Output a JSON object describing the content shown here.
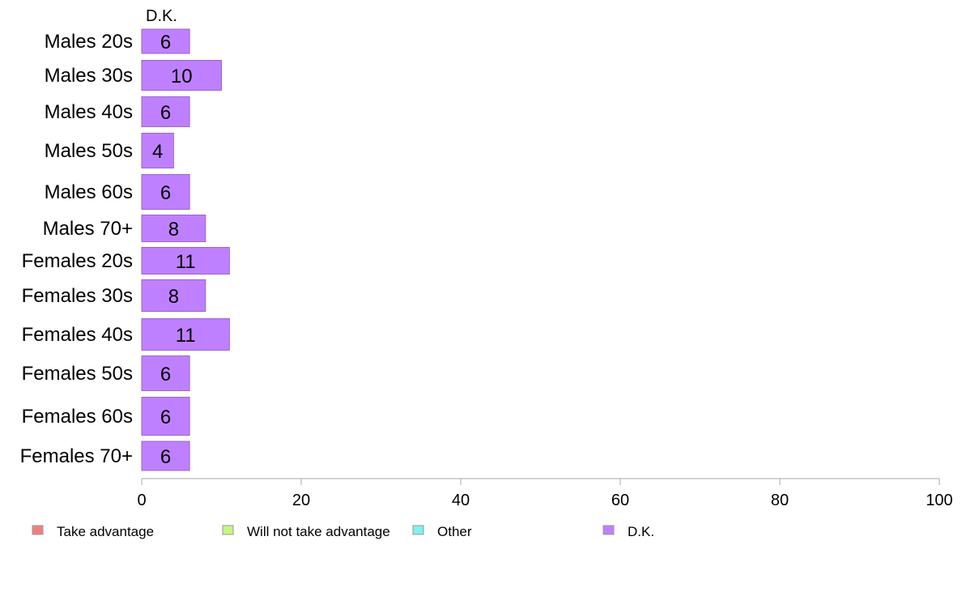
{
  "chart_data": {
    "type": "bar",
    "orientation": "horizontal",
    "stacked": true,
    "column_header": "D.K.",
    "categories": [
      "Males 20s",
      "Males 30s",
      "Males 40s",
      "Males 50s",
      "Males 60s",
      "Males 70+",
      "Females 20s",
      "Females 30s",
      "Females 40s",
      "Females 50s",
      "Females 60s",
      "Females 70+"
    ],
    "series": [
      {
        "name": "Take advantage",
        "color": "#f08080",
        "values": [
          0,
          0,
          0,
          0,
          0,
          0,
          0,
          0,
          0,
          0,
          0,
          0
        ]
      },
      {
        "name": "Will not take advantage",
        "color": "#c8f57f",
        "values": [
          0,
          0,
          0,
          0,
          0,
          0,
          0,
          0,
          0,
          0,
          0,
          0
        ]
      },
      {
        "name": "Other",
        "color": "#80f0f0",
        "values": [
          0,
          0,
          0,
          0,
          0,
          0,
          0,
          0,
          0,
          0,
          0,
          0
        ]
      },
      {
        "name": "D.K.",
        "color": "#bf80ff",
        "values": [
          6,
          10,
          6,
          4,
          6,
          8,
          11,
          8,
          11,
          6,
          6,
          6
        ]
      }
    ],
    "xlim": [
      0,
      100
    ],
    "xticks": [
      0,
      20,
      40,
      60,
      80,
      100
    ],
    "grid": false,
    "legend_position": "bottom"
  },
  "colors": {
    "bar_stroke": "#9966cc",
    "axis": "#aaaaaa"
  }
}
